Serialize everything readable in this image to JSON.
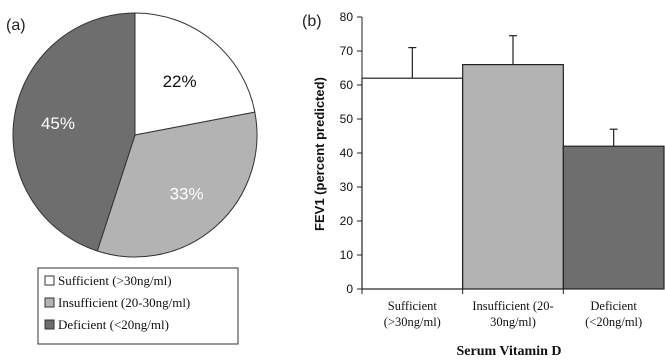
{
  "chart_data": [
    {
      "panel_label": "(a)",
      "type": "pie",
      "slices": [
        {
          "label": "Sufficient (>30ng/ml)",
          "value": 22,
          "text": "22%",
          "color": "#ffffff"
        },
        {
          "label": "Insufficient (20-30ng/ml)",
          "value": 33,
          "text": "33%",
          "color": "#b3b3b3"
        },
        {
          "label": "Deficient (<20ng/ml)",
          "value": 45,
          "text": "45%",
          "color": "#6e6e6e"
        }
      ],
      "legend": {
        "position": "bottom",
        "items": [
          "Sufficient (>30ng/ml)",
          "Insufficient (20-30ng/ml)",
          "Deficient (<20ng/ml)"
        ]
      }
    },
    {
      "panel_label": "(b)",
      "type": "bar",
      "categories": [
        [
          "Sufficient",
          "(>30ng/ml)"
        ],
        [
          "Insufficient (20-",
          "30ng/ml)"
        ],
        [
          "Deficient",
          "(<20ng/ml)"
        ]
      ],
      "values": [
        62,
        66,
        42
      ],
      "error_upper": [
        71,
        74.5,
        47
      ],
      "colors": [
        "#ffffff",
        "#b3b3b3",
        "#6e6e6e"
      ],
      "xlabel": "Serum Vitamin D",
      "ylabel": "FEV1 (percent predicted)",
      "ylim": [
        0,
        80
      ],
      "yticks": [
        0,
        10,
        20,
        30,
        40,
        50,
        60,
        70,
        80
      ],
      "grid": false
    }
  ]
}
